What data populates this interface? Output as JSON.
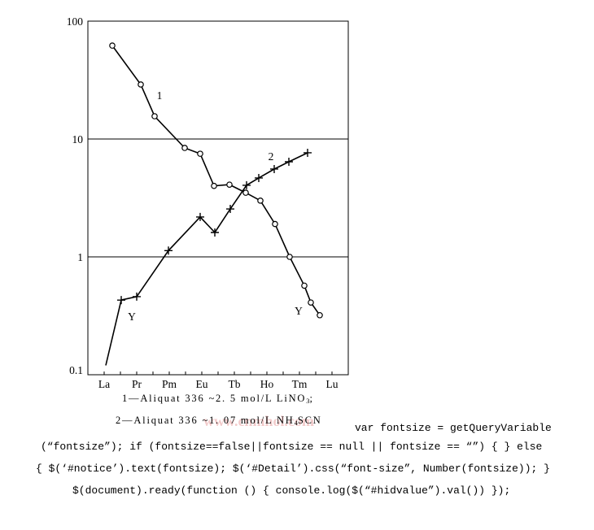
{
  "chart_data": {
    "type": "line",
    "x_scale": "linear",
    "y_scale": "log",
    "xlim": [
      56,
      72
    ],
    "ylim": [
      0.1,
      100
    ],
    "x_ticks": [
      {
        "value": 57,
        "label": "La"
      },
      {
        "value": 59,
        "label": "Pr"
      },
      {
        "value": 61,
        "label": "Pm"
      },
      {
        "value": 63,
        "label": "Eu"
      },
      {
        "value": 65,
        "label": "Tb"
      },
      {
        "value": 67,
        "label": "Ho"
      },
      {
        "value": 69,
        "label": "Tm"
      },
      {
        "value": 71,
        "label": "Lu"
      }
    ],
    "x_minor_ticks": [
      57,
      58,
      59,
      60,
      61,
      62,
      63,
      64,
      65,
      66,
      67,
      68,
      69,
      70,
      71
    ],
    "y_ticks": [
      {
        "value": 100,
        "label": "100"
      },
      {
        "value": 10,
        "label": "10"
      },
      {
        "value": 1,
        "label": "1"
      },
      {
        "value": 0.1,
        "label": "0.1"
      }
    ],
    "reference_lines_y": [
      10,
      1
    ],
    "grid": false,
    "series": [
      {
        "name": "1",
        "marker": "circle",
        "points": [
          {
            "x": 57.5,
            "y": 62
          },
          {
            "x": 59.25,
            "y": 29
          },
          {
            "x": 60.1,
            "y": 15.6
          },
          {
            "x": 61.95,
            "y": 8.4
          },
          {
            "x": 62.9,
            "y": 7.5
          },
          {
            "x": 63.75,
            "y": 4.0
          },
          {
            "x": 64.7,
            "y": 4.1
          },
          {
            "x": 65.7,
            "y": 3.5
          },
          {
            "x": 66.6,
            "y": 3.0
          },
          {
            "x": 67.5,
            "y": 1.9
          },
          {
            "x": 68.4,
            "y": 1.0
          },
          {
            "x": 69.3,
            "y": 0.57
          },
          {
            "x": 69.7,
            "y": 0.41,
            "label": "Y"
          },
          {
            "x": 70.25,
            "y": 0.32
          }
        ]
      },
      {
        "name": "2",
        "marker": "plus",
        "points": [
          {
            "x": 57.1,
            "y": 0.12,
            "marker": false
          },
          {
            "x": 58.05,
            "y": 0.43,
            "label": "Y"
          },
          {
            "x": 59.0,
            "y": 0.46
          },
          {
            "x": 60.95,
            "y": 1.13
          },
          {
            "x": 62.9,
            "y": 2.18
          },
          {
            "x": 63.8,
            "y": 1.61
          },
          {
            "x": 64.75,
            "y": 2.55
          },
          {
            "x": 65.75,
            "y": 4.05
          },
          {
            "x": 66.5,
            "y": 4.67
          },
          {
            "x": 67.45,
            "y": 5.56
          },
          {
            "x": 68.35,
            "y": 6.41
          },
          {
            "x": 69.5,
            "y": 7.64
          }
        ]
      }
    ],
    "legend": [
      {
        "text": "1—Aliquat 336 ~2. 5 mol/L LiNO",
        "sub": "3",
        "after": ";"
      },
      {
        "text": "2—Aliquat 336 ~1. 07 mol/L NH",
        "sub": "4",
        "after": "SCN"
      }
    ]
  },
  "watermark": {
    "text": "有色金属在线",
    "url": "www.cnmhol.com"
  },
  "code_text": [
    "var fontsize = getQueryVariable",
    "(“fontsize”); if (fontsize==false||fontsize == null || fontsize == “”) { } else",
    "{ $(‘#notice’).text(fontsize); $(‘#Detail’).css(“font-size”, Number(fontsize)); }",
    "$(document).ready(function () { console.log($(“#hidvalue”).val()) });"
  ],
  "colors": {
    "background": "#ffffff",
    "ink": "#000000",
    "watermark": "#e8a0a0"
  }
}
